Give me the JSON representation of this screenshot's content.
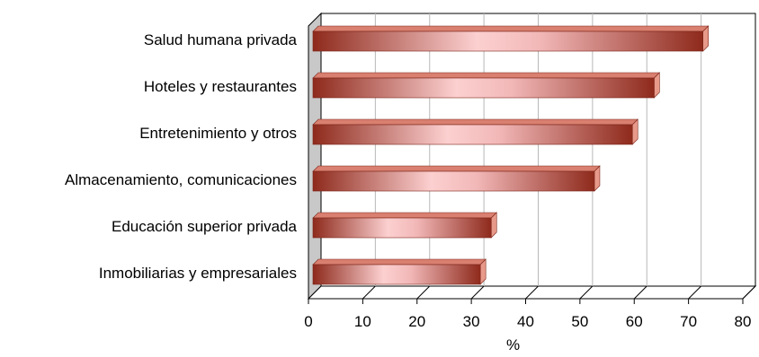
{
  "chart_data": {
    "type": "bar",
    "orientation": "horizontal",
    "categories": [
      "Salud humana privada",
      "Hoteles y restaurantes",
      "Entretenimiento y otros",
      "Almacenamiento, comunicaciones",
      "Educación superior privada",
      "Inmobiliarias y empresariales"
    ],
    "values": [
      72,
      63,
      59,
      52,
      33,
      31
    ],
    "xlabel": "%",
    "xlim": [
      0,
      80
    ],
    "xticks": [
      "0",
      "10",
      "20",
      "30",
      "40",
      "50",
      "60",
      "70",
      "80"
    ],
    "grid": true,
    "three_d": true,
    "colors": {
      "bar_dark": "#8e2a1c",
      "bar_light": "#fcd0d0",
      "bar_top": "#d98070",
      "bar_end": "#e89a8a",
      "grid": "#b8b8b8",
      "wall": "#c8c8c8"
    }
  }
}
